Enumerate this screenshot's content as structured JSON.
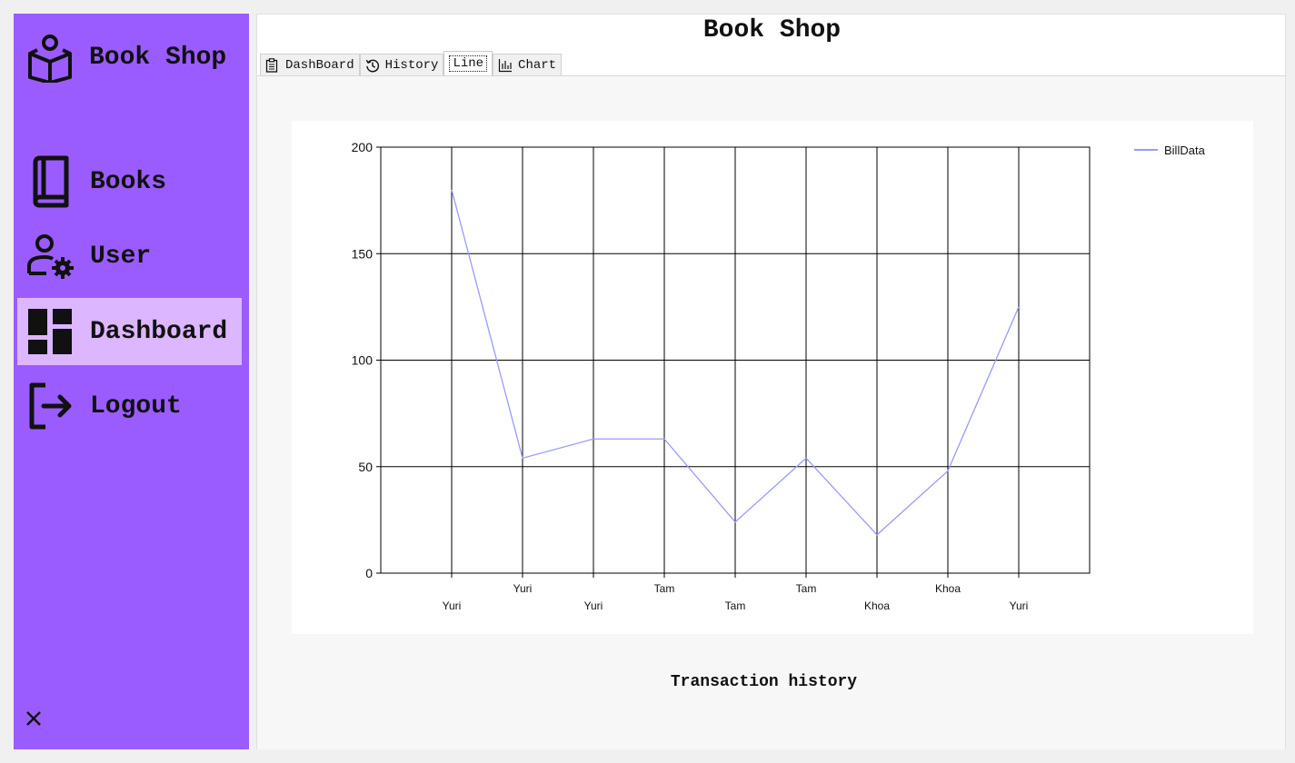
{
  "sidebar": {
    "brand": {
      "label": "Book Shop",
      "icon": "reading-book-icon"
    },
    "items": [
      {
        "label": "Books",
        "icon": "book-icon",
        "active": false
      },
      {
        "label": "User",
        "icon": "user-gear-icon",
        "active": false
      },
      {
        "label": "Dashboard",
        "icon": "dashboard-icon",
        "active": true
      },
      {
        "label": "Logout",
        "icon": "logout-icon",
        "active": false
      }
    ],
    "close_icon": "close-icon"
  },
  "main": {
    "title": "Book Shop",
    "tabs": [
      {
        "label": "DashBoard",
        "icon": "clipboard-icon"
      },
      {
        "label": "History",
        "icon": "history-icon"
      },
      {
        "label": "Line",
        "icon": "",
        "active": true
      },
      {
        "label": "Chart",
        "icon": "bar-chart-icon"
      }
    ],
    "caption": "Transaction history"
  },
  "colors": {
    "sidebar_bg": "#9b5cff",
    "active_item_bg": "#dcb6ff",
    "series_line": "#9999ff"
  },
  "chart_data": {
    "type": "line",
    "categories": [
      "Yuri",
      "Yuri",
      "Yuri",
      "Tam",
      "Tam",
      "Tam",
      "Khoa",
      "Khoa",
      "Yuri"
    ],
    "series": [
      {
        "name": "BillData",
        "values": [
          180,
          54,
          63,
          63,
          24,
          54,
          18,
          48,
          125
        ]
      }
    ],
    "ylim": [
      0,
      200
    ],
    "yticks": [
      0,
      50,
      100,
      150,
      200
    ],
    "grid": true,
    "legend": "top-right"
  }
}
